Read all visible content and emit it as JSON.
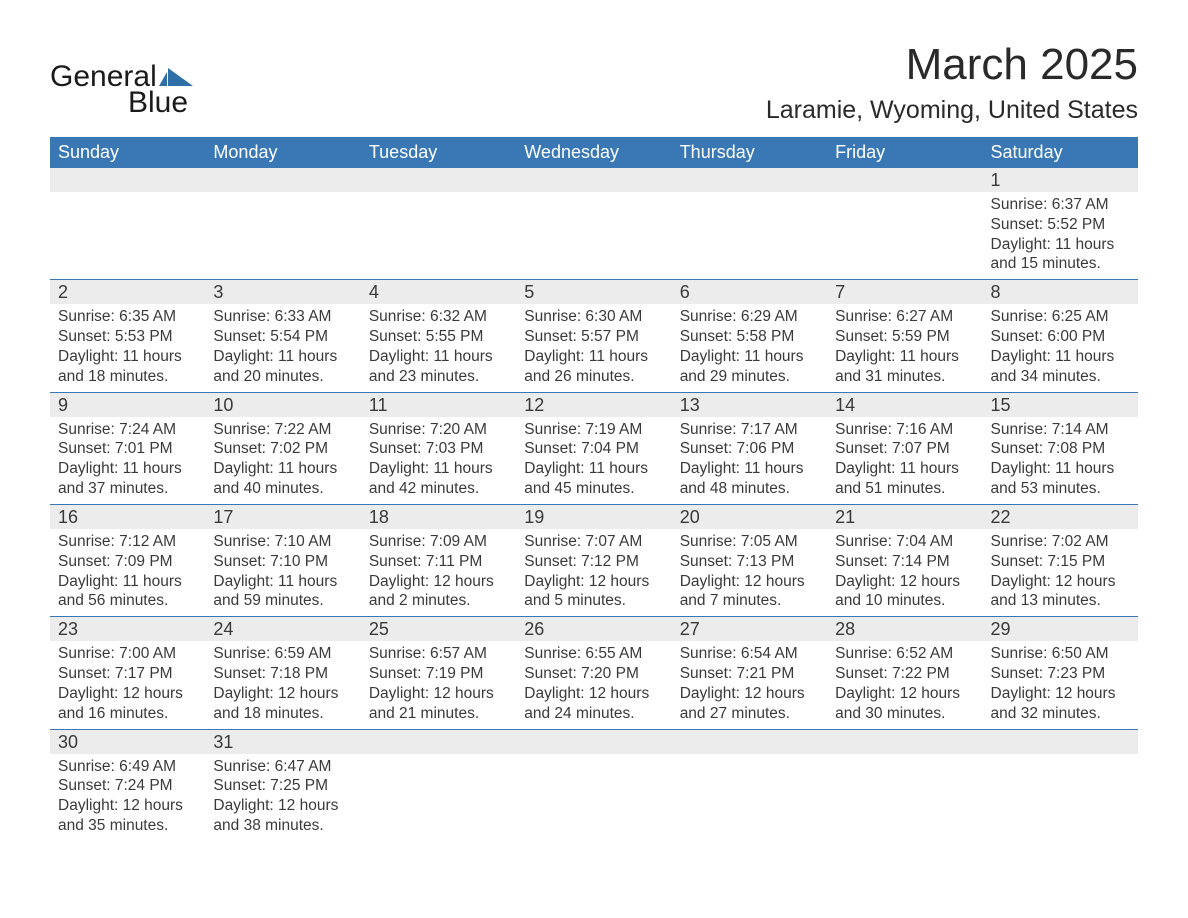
{
  "brand": {
    "name_left": "General",
    "name_right": "Blue"
  },
  "colors": {
    "header_bg": "#3a78b5",
    "daynum_bg": "#ececec",
    "text": "#3a3a3a",
    "title": "#2a2a2a",
    "white": "#ffffff",
    "logo_blue": "#2f6fa8"
  },
  "title": "March 2025",
  "location": "Laramie, Wyoming, United States",
  "weekdays": [
    "Sunday",
    "Monday",
    "Tuesday",
    "Wednesday",
    "Thursday",
    "Friday",
    "Saturday"
  ],
  "layout": {
    "columns": 7,
    "rows": 6,
    "first_weekday_index": 6
  },
  "days": [
    {
      "n": 1,
      "sunrise": "6:37 AM",
      "sunset": "5:52 PM",
      "daylight": "11 hours and 15 minutes."
    },
    {
      "n": 2,
      "sunrise": "6:35 AM",
      "sunset": "5:53 PM",
      "daylight": "11 hours and 18 minutes."
    },
    {
      "n": 3,
      "sunrise": "6:33 AM",
      "sunset": "5:54 PM",
      "daylight": "11 hours and 20 minutes."
    },
    {
      "n": 4,
      "sunrise": "6:32 AM",
      "sunset": "5:55 PM",
      "daylight": "11 hours and 23 minutes."
    },
    {
      "n": 5,
      "sunrise": "6:30 AM",
      "sunset": "5:57 PM",
      "daylight": "11 hours and 26 minutes."
    },
    {
      "n": 6,
      "sunrise": "6:29 AM",
      "sunset": "5:58 PM",
      "daylight": "11 hours and 29 minutes."
    },
    {
      "n": 7,
      "sunrise": "6:27 AM",
      "sunset": "5:59 PM",
      "daylight": "11 hours and 31 minutes."
    },
    {
      "n": 8,
      "sunrise": "6:25 AM",
      "sunset": "6:00 PM",
      "daylight": "11 hours and 34 minutes."
    },
    {
      "n": 9,
      "sunrise": "7:24 AM",
      "sunset": "7:01 PM",
      "daylight": "11 hours and 37 minutes."
    },
    {
      "n": 10,
      "sunrise": "7:22 AM",
      "sunset": "7:02 PM",
      "daylight": "11 hours and 40 minutes."
    },
    {
      "n": 11,
      "sunrise": "7:20 AM",
      "sunset": "7:03 PM",
      "daylight": "11 hours and 42 minutes."
    },
    {
      "n": 12,
      "sunrise": "7:19 AM",
      "sunset": "7:04 PM",
      "daylight": "11 hours and 45 minutes."
    },
    {
      "n": 13,
      "sunrise": "7:17 AM",
      "sunset": "7:06 PM",
      "daylight": "11 hours and 48 minutes."
    },
    {
      "n": 14,
      "sunrise": "7:16 AM",
      "sunset": "7:07 PM",
      "daylight": "11 hours and 51 minutes."
    },
    {
      "n": 15,
      "sunrise": "7:14 AM",
      "sunset": "7:08 PM",
      "daylight": "11 hours and 53 minutes."
    },
    {
      "n": 16,
      "sunrise": "7:12 AM",
      "sunset": "7:09 PM",
      "daylight": "11 hours and 56 minutes."
    },
    {
      "n": 17,
      "sunrise": "7:10 AM",
      "sunset": "7:10 PM",
      "daylight": "11 hours and 59 minutes."
    },
    {
      "n": 18,
      "sunrise": "7:09 AM",
      "sunset": "7:11 PM",
      "daylight": "12 hours and 2 minutes."
    },
    {
      "n": 19,
      "sunrise": "7:07 AM",
      "sunset": "7:12 PM",
      "daylight": "12 hours and 5 minutes."
    },
    {
      "n": 20,
      "sunrise": "7:05 AM",
      "sunset": "7:13 PM",
      "daylight": "12 hours and 7 minutes."
    },
    {
      "n": 21,
      "sunrise": "7:04 AM",
      "sunset": "7:14 PM",
      "daylight": "12 hours and 10 minutes."
    },
    {
      "n": 22,
      "sunrise": "7:02 AM",
      "sunset": "7:15 PM",
      "daylight": "12 hours and 13 minutes."
    },
    {
      "n": 23,
      "sunrise": "7:00 AM",
      "sunset": "7:17 PM",
      "daylight": "12 hours and 16 minutes."
    },
    {
      "n": 24,
      "sunrise": "6:59 AM",
      "sunset": "7:18 PM",
      "daylight": "12 hours and 18 minutes."
    },
    {
      "n": 25,
      "sunrise": "6:57 AM",
      "sunset": "7:19 PM",
      "daylight": "12 hours and 21 minutes."
    },
    {
      "n": 26,
      "sunrise": "6:55 AM",
      "sunset": "7:20 PM",
      "daylight": "12 hours and 24 minutes."
    },
    {
      "n": 27,
      "sunrise": "6:54 AM",
      "sunset": "7:21 PM",
      "daylight": "12 hours and 27 minutes."
    },
    {
      "n": 28,
      "sunrise": "6:52 AM",
      "sunset": "7:22 PM",
      "daylight": "12 hours and 30 minutes."
    },
    {
      "n": 29,
      "sunrise": "6:50 AM",
      "sunset": "7:23 PM",
      "daylight": "12 hours and 32 minutes."
    },
    {
      "n": 30,
      "sunrise": "6:49 AM",
      "sunset": "7:24 PM",
      "daylight": "12 hours and 35 minutes."
    },
    {
      "n": 31,
      "sunrise": "6:47 AM",
      "sunset": "7:25 PM",
      "daylight": "12 hours and 38 minutes."
    }
  ],
  "labels": {
    "sunrise": "Sunrise: ",
    "sunset": "Sunset: ",
    "daylight": "Daylight: "
  }
}
